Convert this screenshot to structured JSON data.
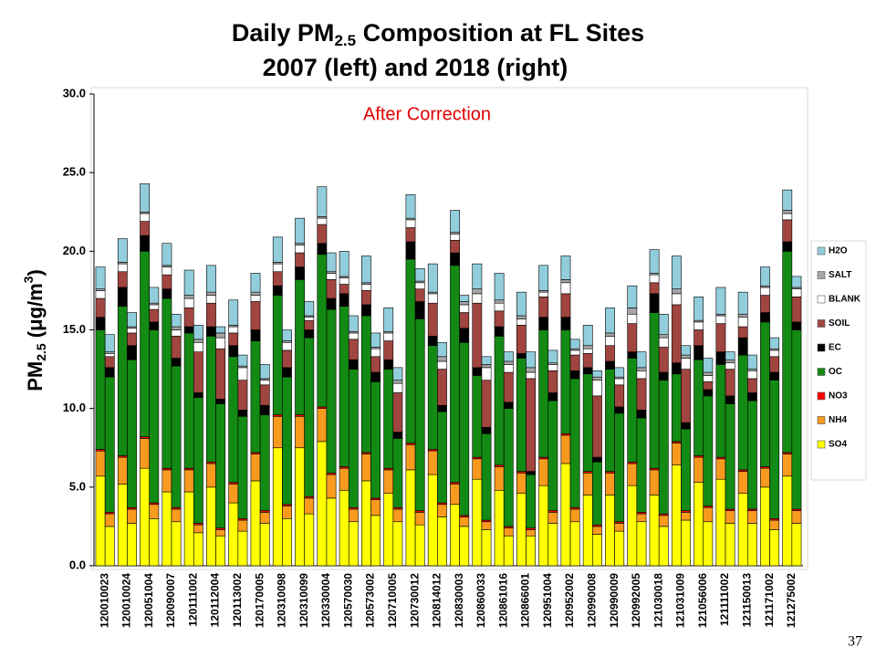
{
  "chart_data": {
    "type": "stacked_bar",
    "title": [
      "Daily PM",
      "2.5",
      " Composition at FL Sites"
    ],
    "subtitle": "2007 (left) and 2018 (right)",
    "y_label": [
      "PM",
      "2.5",
      " (μg/m",
      "3",
      ")"
    ],
    "annotation": "After Correction",
    "page_number": "37",
    "categories": [
      "120010023",
      null,
      "120010024",
      null,
      "120051004",
      null,
      "120090007",
      null,
      "120111002",
      null,
      "120112004",
      null,
      "120113002",
      null,
      "120170005",
      null,
      "120310098",
      null,
      "120310099",
      null,
      "120330004",
      null,
      "120570030",
      null,
      "120573002",
      null,
      "120710005",
      null,
      "120730012",
      null,
      "120814012",
      null,
      "120830003",
      null,
      "120860033",
      null,
      "120861016",
      null,
      "120866001",
      null,
      "120951004",
      null,
      "120952002",
      null,
      "120990008",
      null,
      "120990009",
      null,
      "120992005",
      null,
      "121030018",
      null,
      "121031009",
      null,
      "121056006",
      null,
      "121111002",
      null,
      "121150013",
      null,
      "121171002",
      null,
      "121275002",
      null
    ],
    "ylim": [
      0,
      30
    ],
    "yticks": [
      {
        "value": 0,
        "label": "0.0"
      },
      {
        "value": 5,
        "label": "5.0"
      },
      {
        "value": 10,
        "label": "10.0"
      },
      {
        "value": 15,
        "label": "15.0"
      },
      {
        "value": 20,
        "label": "20.0"
      },
      {
        "value": 25,
        "label": "25.0"
      },
      {
        "value": 30,
        "label": "30.0"
      }
    ],
    "grid": false,
    "legend": "right",
    "series": [
      {
        "name": "SO4",
        "color": "#ffff00",
        "values": [
          5.7,
          2.5,
          5.2,
          2.7,
          6.2,
          3.0,
          4.7,
          2.8,
          4.7,
          2.1,
          5.0,
          1.9,
          4.0,
          2.2,
          5.4,
          2.7,
          7.5,
          3.0,
          7.5,
          3.3,
          7.9,
          4.3,
          4.8,
          2.8,
          5.4,
          3.2,
          4.6,
          2.8,
          6.1,
          2.6,
          5.8,
          3.1,
          3.9,
          2.5,
          5.5,
          2.3,
          4.8,
          1.9,
          4.6,
          1.9,
          5.1,
          2.7,
          6.5,
          2.8,
          4.5,
          2.0,
          4.5,
          2.2,
          5.1,
          2.8,
          4.5,
          2.5,
          6.4,
          2.9,
          5.3,
          2.8,
          5.5,
          2.7,
          4.6,
          2.7,
          5.0,
          2.3,
          5.7,
          2.7
        ]
      },
      {
        "name": "NH4",
        "color": "#f79a1e",
        "values": [
          1.6,
          0.8,
          1.7,
          0.9,
          1.9,
          0.9,
          1.4,
          0.8,
          1.4,
          0.5,
          1.5,
          0.4,
          1.2,
          0.7,
          1.7,
          0.7,
          2.0,
          0.8,
          2.0,
          1.0,
          2.1,
          1.5,
          1.4,
          0.8,
          1.7,
          1.0,
          1.5,
          0.8,
          1.6,
          0.8,
          1.5,
          0.8,
          1.3,
          0.6,
          1.3,
          0.5,
          1.5,
          0.5,
          1.3,
          0.4,
          1.7,
          0.7,
          1.8,
          0.8,
          1.4,
          0.5,
          1.4,
          0.5,
          1.4,
          0.5,
          1.6,
          0.7,
          1.4,
          0.5,
          1.6,
          0.9,
          1.3,
          0.8,
          1.4,
          0.8,
          1.2,
          0.6,
          1.4,
          0.8
        ]
      },
      {
        "name": "NO3",
        "color": "#ff0000",
        "values": [
          0.1,
          0.1,
          0.1,
          0.1,
          0.1,
          0.1,
          0.1,
          0.1,
          0.1,
          0.1,
          0.1,
          0.1,
          0.1,
          0.1,
          0.1,
          0.1,
          0.1,
          0.1,
          0.1,
          0.1,
          0.1,
          0.1,
          0.1,
          0.1,
          0.1,
          0.1,
          0.1,
          0.1,
          0.1,
          0.1,
          0.1,
          0.1,
          0.1,
          0.1,
          0.1,
          0.1,
          0.1,
          0.1,
          0.1,
          0.1,
          0.1,
          0.1,
          0.1,
          0.1,
          0.1,
          0.1,
          0.1,
          0.1,
          0.1,
          0.1,
          0.1,
          0.1,
          0.1,
          0.1,
          0.1,
          0.1,
          0.1,
          0.1,
          0.1,
          0.1,
          0.1,
          0.1,
          0.1,
          0.1
        ]
      },
      {
        "name": "OC",
        "color": "#138a13",
        "values": [
          7.6,
          8.6,
          9.5,
          9.4,
          11.8,
          11.0,
          10.8,
          9.0,
          8.6,
          8.0,
          8.0,
          7.9,
          8.0,
          6.5,
          7.1,
          6.1,
          7.6,
          8.1,
          8.6,
          10.1,
          9.7,
          10.4,
          10.2,
          8.8,
          8.7,
          7.4,
          6.3,
          4.4,
          11.7,
          12.2,
          6.6,
          5.8,
          13.8,
          11.0,
          5.2,
          5.5,
          8.2,
          7.5,
          7.2,
          3.4,
          8.1,
          7.0,
          6.6,
          8.2,
          6.2,
          4.0,
          6.5,
          6.9,
          6.6,
          6.0,
          9.9,
          8.5,
          4.3,
          5.2,
          6.1,
          7.0,
          5.9,
          6.7,
          7.3,
          6.9,
          9.2,
          8.8,
          12.8,
          11.4
        ]
      },
      {
        "name": "EC",
        "color": "#000000",
        "values": [
          0.8,
          0.6,
          1.2,
          0.9,
          1.0,
          0.5,
          0.6,
          0.5,
          0.4,
          0.3,
          0.6,
          0.3,
          0.7,
          0.4,
          0.7,
          0.6,
          0.6,
          0.6,
          0.8,
          0.5,
          0.7,
          0.7,
          0.8,
          0.6,
          0.7,
          0.6,
          0.6,
          0.4,
          1.1,
          1.1,
          0.6,
          0.4,
          0.8,
          0.9,
          0.5,
          0.4,
          0.6,
          0.4,
          0.3,
          0.2,
          0.8,
          0.5,
          0.8,
          0.5,
          0.4,
          0.3,
          0.5,
          0.4,
          0.4,
          0.5,
          1.2,
          0.5,
          0.7,
          0.4,
          0.9,
          0.4,
          0.8,
          0.5,
          1.1,
          0.5,
          0.6,
          0.5,
          0.6,
          0.5
        ]
      },
      {
        "name": "SOIL",
        "color": "#a0453f",
        "values": [
          1.2,
          0.7,
          1.0,
          0.8,
          0.9,
          0.8,
          0.9,
          1.4,
          1.2,
          2.6,
          1.5,
          3.2,
          0.8,
          1.9,
          1.8,
          1.3,
          0.9,
          1.1,
          0.9,
          0.6,
          1.2,
          1.2,
          0.6,
          1.3,
          0.9,
          1.0,
          1.2,
          2.5,
          0.9,
          0.8,
          2.1,
          2.3,
          0.8,
          1.0,
          4.1,
          3.0,
          1.0,
          1.9,
          1.8,
          5.9,
          1.3,
          1.4,
          1.5,
          1.0,
          0.9,
          3.9,
          1.0,
          1.4,
          1.8,
          2.0,
          0.7,
          1.6,
          3.7,
          3.4,
          1.0,
          0.5,
          1.8,
          1.7,
          0.7,
          0.9,
          1.1,
          1.0,
          1.4,
          1.6
        ]
      },
      {
        "name": "BLANK",
        "color": "#ffffff",
        "values": [
          0.5,
          0.2,
          0.5,
          0.3,
          0.5,
          0.3,
          0.5,
          0.4,
          0.6,
          0.6,
          0.5,
          0.7,
          0.4,
          0.8,
          0.4,
          0.3,
          0.5,
          0.5,
          0.5,
          0.2,
          0.4,
          0.4,
          0.4,
          0.4,
          0.4,
          0.5,
          0.5,
          0.6,
          0.5,
          0.4,
          0.6,
          0.5,
          0.4,
          0.5,
          0.6,
          0.8,
          0.5,
          0.5,
          0.4,
          0.4,
          0.3,
          0.4,
          0.7,
          0.3,
          0.3,
          1.0,
          0.6,
          0.4,
          0.6,
          0.5,
          0.5,
          0.6,
          0.7,
          0.7,
          0.5,
          0.4,
          0.5,
          0.4,
          0.6,
          0.5,
          0.5,
          0.4,
          0.4,
          0.5
        ]
      },
      {
        "name": "SALT",
        "color": "#a6a6a6",
        "values": [
          0.1,
          0.1,
          0.1,
          0.1,
          0.1,
          0.1,
          0.1,
          0.2,
          0.2,
          0.2,
          0.2,
          0.3,
          0.1,
          0.1,
          0.2,
          0.1,
          0.1,
          0.1,
          0.1,
          0.1,
          0.1,
          0.1,
          0.1,
          0.1,
          0.1,
          0.1,
          0.1,
          0.2,
          0.1,
          0.1,
          0.1,
          0.3,
          0.1,
          0.2,
          0.3,
          0.2,
          0.2,
          0.2,
          0.2,
          0.3,
          0.1,
          0.1,
          0.2,
          0.1,
          0.2,
          0.2,
          0.2,
          0.1,
          0.4,
          0.2,
          0.1,
          0.2,
          0.3,
          0.2,
          0.1,
          0.2,
          0.1,
          0.2,
          0.2,
          0.1,
          0.1,
          0.1,
          0.2,
          0.1
        ]
      },
      {
        "name": "H2O",
        "color": "#92cddc",
        "values": [
          1.4,
          1.1,
          1.5,
          0.9,
          1.8,
          1.0,
          1.4,
          0.8,
          1.6,
          0.9,
          1.7,
          0.4,
          1.6,
          0.7,
          1.2,
          0.9,
          1.6,
          0.7,
          1.6,
          0.9,
          1.9,
          1.2,
          1.6,
          1.0,
          1.7,
          0.9,
          1.5,
          0.8,
          1.5,
          0.8,
          1.8,
          0.9,
          1.4,
          0.4,
          1.6,
          0.5,
          1.7,
          0.6,
          1.5,
          1.0,
          1.6,
          0.8,
          1.5,
          0.6,
          1.3,
          0.4,
          1.6,
          0.6,
          1.4,
          1.0,
          1.5,
          1.3,
          2.1,
          0.6,
          1.5,
          0.9,
          1.7,
          0.5,
          1.4,
          0.9,
          1.2,
          0.7,
          1.3,
          0.7
        ]
      }
    ]
  }
}
